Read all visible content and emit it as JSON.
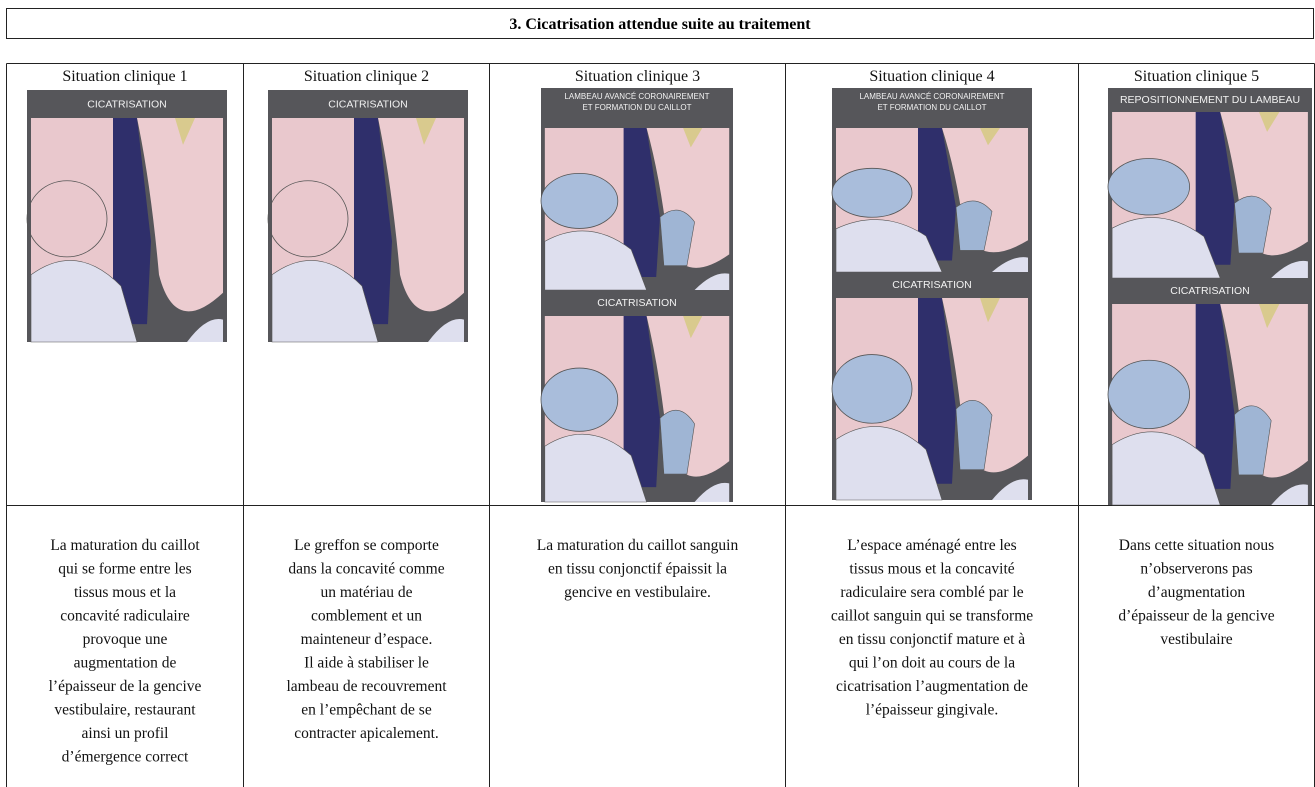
{
  "section_title": "3.  Cicatrisation attendue suite au traitement",
  "table": {
    "columns": [
      {
        "header": "Situation clinique 1",
        "images": [
          {
            "label": [
              "CICATRISATION"
            ]
          }
        ],
        "text": [
          "La maturation du caillot",
          "qui se forme entre les",
          "tissus mous et la",
          "concavité radiculaire",
          "provoque une",
          "augmentation de",
          "l’épaisseur de la gencive",
          "vestibulaire, restaurant",
          "ainsi un profil",
          "d’émergence correct"
        ]
      },
      {
        "header": "Situation clinique 2",
        "images": [
          {
            "label": [
              "CICATRISATION"
            ]
          }
        ],
        "text": [
          "Le greffon se comporte",
          "dans la concavité comme",
          "un matériau de",
          "comblement et un",
          "mainteneur d’espace.",
          "Il aide à stabiliser le",
          "lambeau de recouvrement",
          "en l’empêchant de se",
          "contracter apicalement."
        ]
      },
      {
        "header": "Situation clinique 3",
        "images": [
          {
            "label": [
              "LAMBEAU AVANCÉ CORONAIREMENT",
              "ET FORMATION DU CAILLOT"
            ]
          },
          {
            "label": [
              "CICATRISATION"
            ]
          }
        ],
        "text": [
          "La maturation du caillot sanguin",
          "en tissu conjonctif épaissit la",
          "gencive en vestibulaire."
        ]
      },
      {
        "header": "Situation clinique 4",
        "images": [
          {
            "label": [
              "LAMBEAU AVANCÉ CORONAIREMENT",
              "ET FORMATION DU CAILLOT"
            ]
          },
          {
            "label": [
              "CICATRISATION"
            ]
          }
        ],
        "text": [
          "L’espace aménagé entre les",
          "tissus mous et la concavité",
          "radiculaire sera comblé par le",
          "caillot sanguin qui se transforme",
          "en tissu conjonctif mature et à",
          "qui l’on doit au cours de la",
          "cicatrisation l’augmentation de",
          "l’épaisseur gingivale."
        ]
      },
      {
        "header": "Situation clinique 5",
        "images": [
          {
            "label": [
              "REPOSITIONNEMENT DU LAMBEAU"
            ]
          },
          {
            "label": [
              "CICATRISATION"
            ]
          }
        ],
        "text": [
          "Dans cette situation nous",
          "n’observerons pas",
          "d’augmentation",
          "d’épaisseur de la gencive",
          "vestibulaire"
        ]
      }
    ]
  }
}
